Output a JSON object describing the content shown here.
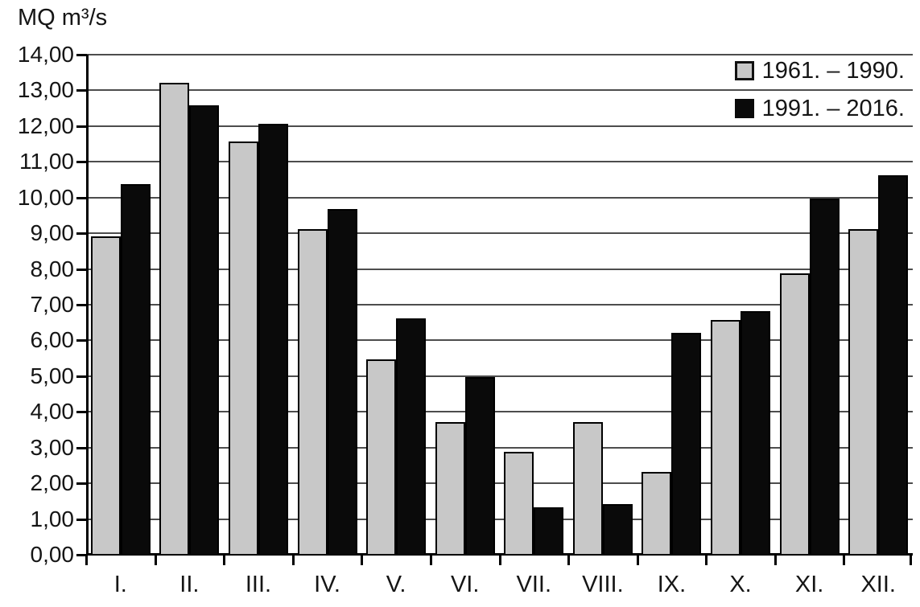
{
  "colors": {
    "background": "#ffffff",
    "grid": "#4d4d4d",
    "axis": "#000000",
    "text": "#151515",
    "series1_fill": "#c8c8c8",
    "series2_fill": "#0a0a0a"
  },
  "chart_data": {
    "type": "bar",
    "title": "",
    "ylabel": "MQ m³/s",
    "xlabel": "",
    "categories": [
      "I.",
      "II.",
      "III.",
      "IV.",
      "V.",
      "VI.",
      "VII.",
      "VIII.",
      "IX.",
      "X.",
      "XI.",
      "XII."
    ],
    "series": [
      {
        "name": "1961. – 1990.",
        "color": "#c8c8c8",
        "values": [
          8.9,
          13.2,
          11.55,
          9.1,
          5.45,
          3.7,
          2.85,
          3.7,
          2.3,
          6.55,
          7.85,
          9.1
        ]
      },
      {
        "name": "1991. – 2016.",
        "color": "#0a0a0a",
        "values": [
          10.35,
          12.55,
          12.05,
          9.65,
          6.6,
          4.95,
          1.3,
          1.4,
          6.2,
          6.8,
          9.95,
          10.6
        ]
      }
    ],
    "ylim": [
      0,
      14
    ],
    "y_tick_step": 1,
    "y_tick_labels": [
      "14,00",
      "13,00",
      "12,00",
      "11,00",
      "10,00",
      "9,00",
      "8,00",
      "7,00",
      "6,00",
      "5,00",
      "4,00",
      "3,00",
      "2,00",
      "1,00",
      "0,00"
    ],
    "grid": true,
    "legend_position": "top-right"
  }
}
